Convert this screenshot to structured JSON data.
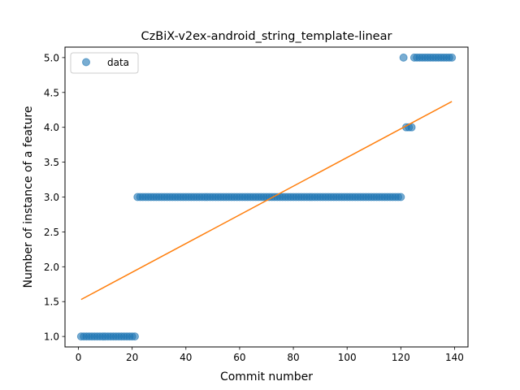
{
  "chart_data": {
    "type": "scatter",
    "title": "CzBiX-v2ex-android_string_template-linear",
    "xlabel": "Commit number",
    "ylabel": "Number of instance of a feature",
    "xlim": [
      -5,
      145
    ],
    "ylim": [
      0.85,
      5.15
    ],
    "xticks": [
      0,
      20,
      40,
      60,
      80,
      100,
      120,
      140
    ],
    "yticks": [
      1.0,
      1.5,
      2.0,
      2.5,
      3.0,
      3.5,
      4.0,
      4.5,
      5.0
    ],
    "xtick_labels": [
      "0",
      "20",
      "40",
      "60",
      "80",
      "100",
      "120",
      "140"
    ],
    "ytick_labels": [
      "1.0",
      "1.5",
      "2.0",
      "2.5",
      "3.0",
      "3.5",
      "4.0",
      "4.5",
      "5.0"
    ],
    "grid": false,
    "legend_position": "upper-left",
    "series": [
      {
        "name": "data",
        "kind": "scatter",
        "color": "#1f77b4",
        "segments": [
          {
            "x_from": 1,
            "x_to": 21,
            "y": 1
          },
          {
            "x_from": 22,
            "x_to": 120,
            "y": 3
          },
          {
            "x_from": 121,
            "x_to": 121,
            "y": 5
          },
          {
            "x_from": 122,
            "x_to": 124,
            "y": 4
          },
          {
            "x_from": 125,
            "x_to": 139,
            "y": 5
          }
        ]
      },
      {
        "kind": "line",
        "color": "#ff7f0e",
        "points": [
          [
            1,
            1.53
          ],
          [
            139,
            4.37
          ]
        ]
      }
    ]
  }
}
